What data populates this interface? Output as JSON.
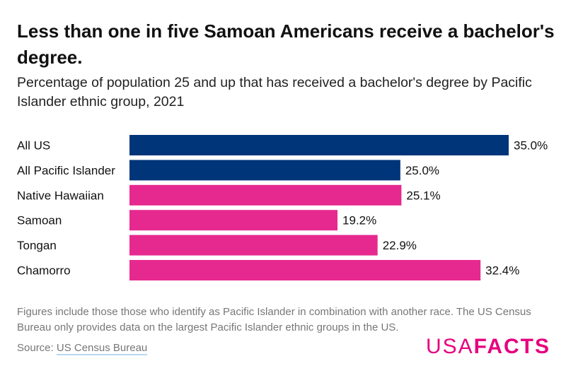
{
  "title": "Less than one in five Samoan Americans receive a bachelor's degree.",
  "subtitle": "Percentage of population 25 and up that has received a bachelor's degree by Pacific Islander ethnic group, 2021",
  "chart_data": {
    "type": "bar",
    "orientation": "horizontal",
    "categories": [
      "All US",
      "All Pacific Islander",
      "Native Hawaiian",
      "Samoan",
      "Tongan",
      "Chamorro"
    ],
    "values": [
      35.0,
      25.0,
      25.1,
      19.2,
      22.9,
      32.4
    ],
    "labels": [
      "35.0%",
      "25.0%",
      "25.1%",
      "19.2%",
      "22.9%",
      "32.4%"
    ],
    "colors": [
      "#00357a",
      "#00357a",
      "#e6298f",
      "#e6298f",
      "#e6298f",
      "#e6298f"
    ],
    "xlim": [
      0,
      35
    ],
    "grid": false
  },
  "note": "Figures include those those who identify as Pacific Islander in combination with another race. The US Census Bureau only provides data on the largest Pacific Islander ethnic groups in the US.",
  "source": {
    "label": "Source: ",
    "link_text": "US Census Bureau"
  },
  "logo": {
    "text_thin": "USA",
    "text_bold": "FACTS",
    "color": "#e6007e"
  }
}
